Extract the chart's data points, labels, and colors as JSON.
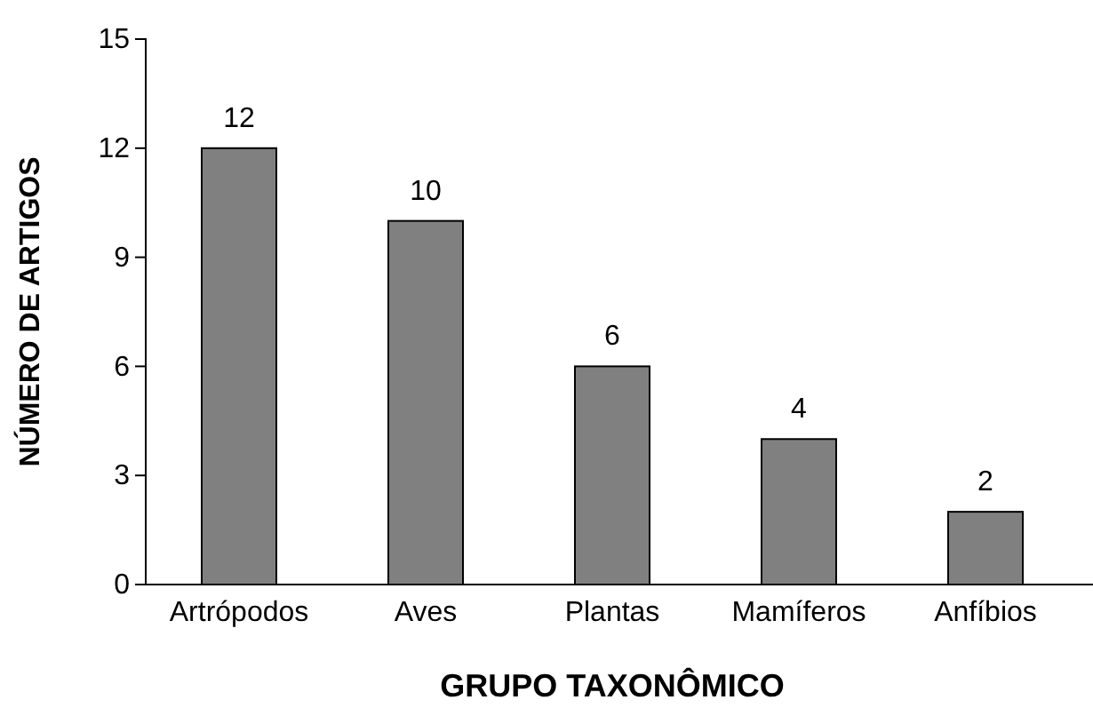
{
  "chart_data": {
    "type": "bar",
    "xlabel": "GRUPO TAXONÔMICO",
    "ylabel": "NÚMERO DE ARTIGOS",
    "categories": [
      "Artrópodos",
      "Aves",
      "Plantas",
      "Mamíferos",
      "Anfíbios"
    ],
    "values": [
      12,
      10,
      6,
      4,
      2
    ],
    "color": "#808080",
    "ylim": [
      0,
      15
    ],
    "yticks": [
      0,
      3,
      6,
      9,
      12,
      15
    ],
    "grid": false,
    "data_labels": true
  }
}
